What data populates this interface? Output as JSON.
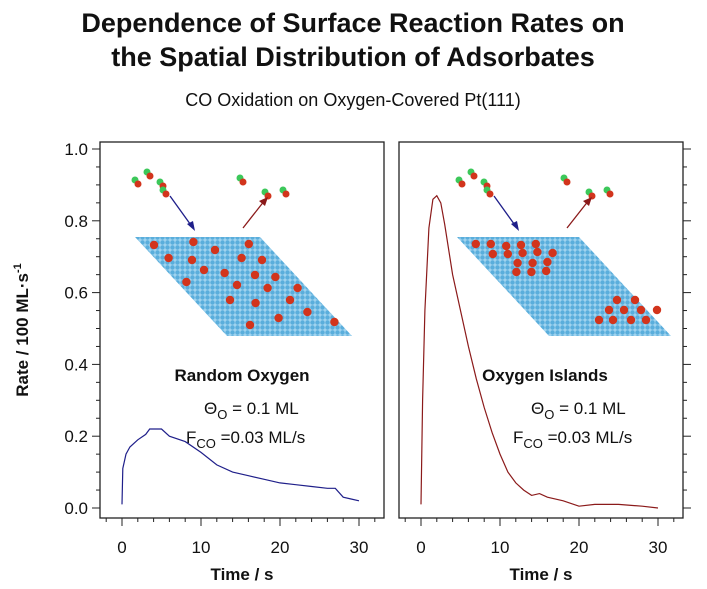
{
  "title_line1": "Dependence of Surface Reaction Rates on",
  "title_line2": "the Spatial Distribution of Adsorbates",
  "subtitle": "CO Oxidation on Oxygen-Covered Pt(111)",
  "colors": {
    "left_curve": "#1f1f8a",
    "right_curve": "#8b1a1a",
    "surface": "#6fb8e0",
    "oxygen": "#d2341c",
    "carbon": "#3cc85a"
  },
  "chart_data": [
    {
      "type": "line",
      "panel_label": "Random Oxygen",
      "ylabel": "Rate / 100 ML·s",
      "ylabel_sup": "-1",
      "xlabel": "Time / s",
      "xlim": [
        -2,
        33
      ],
      "ylim": [
        -0.03,
        1.03
      ],
      "xticks": [
        "0",
        "10",
        "20",
        "30"
      ],
      "yticks": [
        "0.0",
        "0.2",
        "0.4",
        "0.6",
        "0.8",
        "1.0"
      ],
      "theta": {
        "sym": "Θ",
        "sub": "O",
        "rest": " = 0.1 ML"
      },
      "flux": {
        "sym": "F",
        "sub": "CO",
        "rest": " =0.03 ML/s"
      },
      "x": [
        0,
        0.1,
        0.5,
        1,
        2,
        3,
        3.5,
        5,
        6,
        8,
        10,
        12,
        14,
        16,
        18,
        20,
        22,
        24,
        26,
        27,
        28,
        29,
        30
      ],
      "y": [
        0.01,
        0.11,
        0.15,
        0.17,
        0.19,
        0.205,
        0.22,
        0.22,
        0.2,
        0.185,
        0.155,
        0.12,
        0.1,
        0.09,
        0.08,
        0.07,
        0.065,
        0.06,
        0.055,
        0.055,
        0.03,
        0.025,
        0.02
      ]
    },
    {
      "type": "line",
      "panel_label": "Oxygen Islands",
      "xlabel": "Time / s",
      "xlim": [
        -2,
        33
      ],
      "ylim": [
        -0.03,
        1.03
      ],
      "xticks": [
        "0",
        "10",
        "20",
        "30"
      ],
      "theta": {
        "sym": "Θ",
        "sub": "O",
        "rest": " = 0.1 ML"
      },
      "flux": {
        "sym": "F",
        "sub": "CO",
        "rest": " =0.03 ML/s"
      },
      "x": [
        0,
        0.2,
        0.5,
        1,
        1.5,
        2,
        2.5,
        3,
        4,
        5,
        6,
        7,
        8,
        9,
        10,
        11,
        12,
        13,
        14,
        15,
        16,
        18,
        20,
        22,
        25,
        28,
        30
      ],
      "y": [
        0.01,
        0.3,
        0.55,
        0.78,
        0.86,
        0.87,
        0.85,
        0.79,
        0.65,
        0.55,
        0.45,
        0.36,
        0.28,
        0.21,
        0.15,
        0.1,
        0.07,
        0.05,
        0.035,
        0.04,
        0.03,
        0.02,
        0.005,
        0.01,
        0.01,
        0.005,
        0.0
      ]
    }
  ]
}
